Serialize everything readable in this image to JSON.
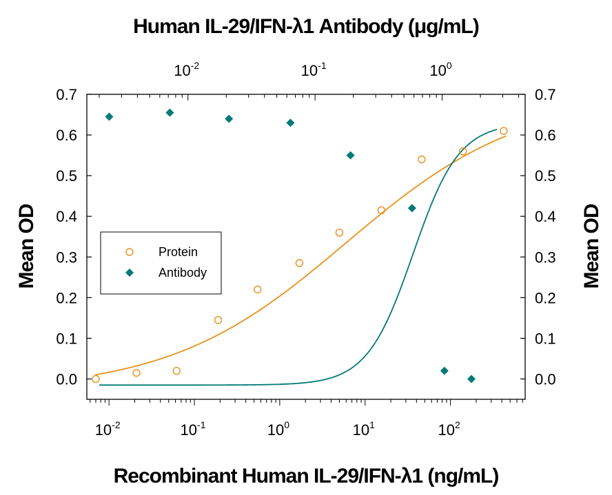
{
  "chart_data": {
    "type": "scatter",
    "title": "Human IL-29/IFN-λ1 Antibody (μg/mL)",
    "xlabel": "Recombinant Human IL-29/IFN-λ1 (ng/mL)",
    "ylabel": "Mean OD",
    "ylabel_right": "Mean OD",
    "x_scale": "log",
    "x_range": [
      0.0055,
      750
    ],
    "x_ticks": [
      {
        "base": "10",
        "exp": "-2",
        "value": 0.01
      },
      {
        "base": "10",
        "exp": "-1",
        "value": 0.1
      },
      {
        "base": "10",
        "exp": "0",
        "value": 1
      },
      {
        "base": "10",
        "exp": "1",
        "value": 10
      },
      {
        "base": "10",
        "exp": "2",
        "value": 100
      }
    ],
    "x2_scale": "log",
    "x2_range": [
      0.0016,
      4.5
    ],
    "x2_ticks": [
      {
        "base": "10",
        "exp": "-2",
        "value": 0.01
      },
      {
        "base": "10",
        "exp": "-1",
        "value": 0.1
      },
      {
        "base": "10",
        "exp": "0",
        "value": 1
      }
    ],
    "ylim": [
      -0.05,
      0.7
    ],
    "y_ticks": [
      "0.0",
      "0.1",
      "0.2",
      "0.3",
      "0.4",
      "0.5",
      "0.6",
      "0.7"
    ],
    "y_tick_values": [
      0.0,
      0.1,
      0.2,
      0.3,
      0.4,
      0.5,
      0.6,
      0.7
    ],
    "legend": {
      "position": "center-left",
      "entries": [
        "Protein",
        "Antibody"
      ]
    },
    "series": [
      {
        "name": "Protein",
        "color": "#e8901a",
        "marker": "open-circle",
        "axis": "bottom",
        "x": [
          0.007,
          0.021,
          0.062,
          0.19,
          0.55,
          1.7,
          5.0,
          15.5,
          46,
          140,
          420
        ],
        "y": [
          0.0,
          0.015,
          0.02,
          0.145,
          0.22,
          0.285,
          0.36,
          0.415,
          0.54,
          0.56,
          0.61
        ]
      },
      {
        "name": "Antibody",
        "color": "#007a78",
        "marker": "filled-diamond",
        "axis": "top",
        "x": [
          0.0024,
          0.0072,
          0.021,
          0.064,
          0.19,
          0.58,
          1.7
        ],
        "y": [
          0.645,
          0.655,
          0.64,
          0.63,
          0.55,
          0.42,
          0.0
        ]
      },
      {
        "name": "Antibody",
        "color": "#007a78",
        "marker": "filled-diamond",
        "axis": "bottom",
        "x": [
          85
        ],
        "y": [
          0.02
        ]
      }
    ],
    "fits": [
      {
        "series": "Protein",
        "color": "#e8901a",
        "bottom": -0.03,
        "top": 0.7,
        "ec50": 6.0,
        "hill": 0.42
      },
      {
        "series": "Antibody",
        "color": "#007a78",
        "axis": "top",
        "bottom": -0.015,
        "top": 0.63,
        "ec50": 0.59,
        "hill": 2.4
      }
    ]
  }
}
